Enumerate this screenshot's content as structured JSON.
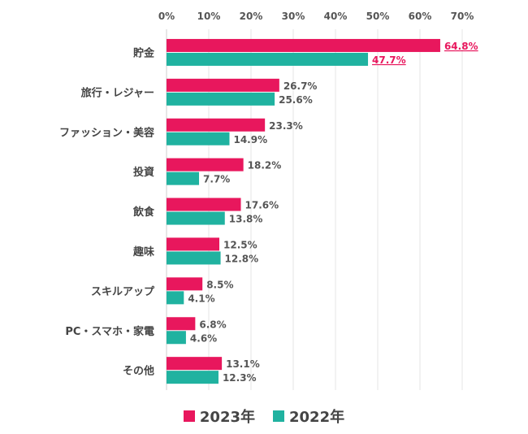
{
  "chart_data": {
    "type": "bar",
    "orientation": "horizontal",
    "categories": [
      "貯金",
      "旅行・レジャー",
      "ファッション・美容",
      "投資",
      "飲食",
      "趣味",
      "スキルアップ",
      "PC・スマホ・家電",
      "その他"
    ],
    "series": [
      {
        "name": "2023年",
        "color": "#E8175D",
        "values": [
          64.8,
          26.7,
          23.3,
          18.2,
          17.6,
          12.5,
          8.5,
          6.8,
          13.1
        ],
        "labels": [
          "64.8%",
          "26.7%",
          "23.3%",
          "18.2%",
          "17.6%",
          "12.5%",
          "8.5%",
          "6.8%",
          "13.1%"
        ]
      },
      {
        "name": "2022年",
        "color": "#20B2A0",
        "values": [
          47.7,
          25.6,
          14.9,
          7.7,
          13.8,
          12.8,
          4.1,
          4.6,
          12.3
        ],
        "labels": [
          "47.7%",
          "25.6%",
          "14.9%",
          "7.7%",
          "13.8%",
          "12.8%",
          "4.1%",
          "4.6%",
          "12.3%"
        ]
      }
    ],
    "x_ticks": [
      "0%",
      "10%",
      "20%",
      "30%",
      "40%",
      "50%",
      "60%",
      "70%"
    ],
    "xlim": [
      0,
      70
    ],
    "axis_position": "top",
    "grid": true,
    "legend": "bottom",
    "highlighted_category": "貯金",
    "highlight_label_color": "#E8175D"
  }
}
